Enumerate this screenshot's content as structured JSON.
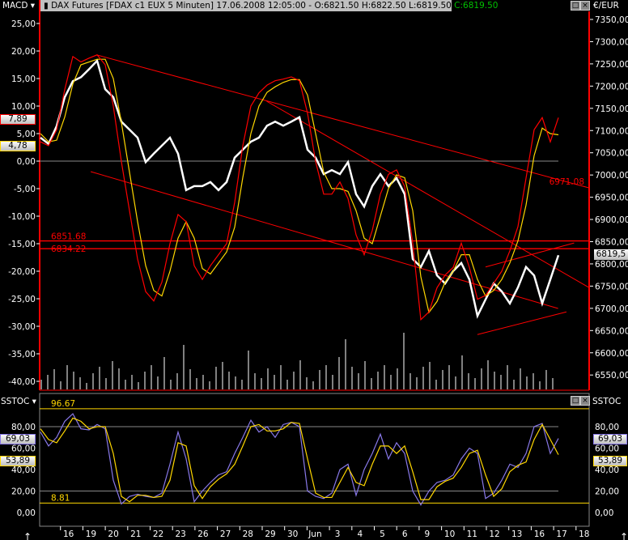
{
  "header": {
    "indicator_menu": "MACD ▾",
    "instrument": "DAX Futures [FDAX c1 EUX  5 Minuten]",
    "datetime": "17.06.2008 12:05:00 -",
    "ohl": "O:6821.50 H:6822.50 L:6819.50",
    "close": "C:6819.50",
    "currency": "€/EUR",
    "lower_indicator_left": "SSTOC ▾",
    "lower_indicator_right": "SSTOC"
  },
  "colors": {
    "price": "#ffffff",
    "macd": "#ff0000",
    "signal": "#ffd700",
    "stoch_k": "#8878e8",
    "stoch_d": "#ffd700",
    "trendline": "#ff0000",
    "background": "#000000",
    "close": "#00c000"
  },
  "icons": {
    "candle": "candlestick-icon",
    "restore": "restore-window-icon",
    "close": "close-icon",
    "arrow": "arrow-up-icon"
  },
  "chart_data": [
    {
      "type": "line",
      "title": "DAX Futures [FDAX c1 EUX  5 Minuten]",
      "x_range": [
        "15.05.2008",
        "17.06.2008 12:05"
      ],
      "x_tick_labels": [
        "16",
        "19",
        "20",
        "21",
        "22",
        "23",
        "26",
        "27",
        "28",
        "29",
        "30",
        "Jun",
        "3",
        "4",
        "5",
        "6",
        "9",
        "10",
        "11",
        "12",
        "13",
        "16",
        "17",
        "18"
      ],
      "right_axis": {
        "label": "€/EUR",
        "ticks": [
          "7350,00",
          "7300,00",
          "7250,00",
          "7200,00",
          "7150,00",
          "7100,00",
          "7050,00",
          "7000,00",
          "6950,00",
          "6900,00",
          "6850,00",
          "6800,00",
          "6750,00",
          "6700,00",
          "6650,00",
          "6600,00",
          "6550,00"
        ],
        "range": [
          6520,
          7370
        ]
      },
      "left_axis": {
        "label": "MACD",
        "ticks": [
          "25,00",
          "20,00",
          "15,00",
          "10,00",
          "5,00",
          "0,00",
          "-5,00",
          "-10,00",
          "-15,00",
          "-20,00",
          "-25,00",
          "-30,00",
          "-35,00",
          "-40,00"
        ],
        "range": [
          -42,
          28
        ]
      },
      "price_series": [
        7084,
        7070,
        7110,
        7175,
        7211,
        7220,
        7238,
        7257,
        7193,
        7175,
        7120,
        7102,
        7084,
        7029,
        7048,
        7066,
        7084,
        7048,
        6966,
        6975,
        6975,
        6984,
        6966,
        6984,
        7039,
        7057,
        7075,
        7084,
        7111,
        7120,
        7111,
        7120,
        7130,
        7057,
        7039,
        7002,
        7011,
        7002,
        7029,
        6957,
        6929,
        6975,
        7002,
        6975,
        6993,
        6957,
        6811,
        6793,
        6829,
        6774,
        6756,
        6784,
        6802,
        6765,
        6683,
        6720,
        6756,
        6738,
        6711,
        6747,
        6793,
        6774,
        6711,
        6765,
        6819.5
      ],
      "macd_series": [
        3.5,
        2.8,
        5.7,
        13,
        19,
        18,
        18.7,
        19.3,
        17.5,
        10,
        -0.1,
        -9,
        -17.8,
        -23.7,
        -25.4,
        -22,
        -15,
        -9.7,
        -11,
        -19,
        -21.5,
        -19,
        -17,
        -15,
        -7.5,
        2.8,
        10,
        12.4,
        13.8,
        14.6,
        14.9,
        15.3,
        14.6,
        8.7,
        -0.1,
        -6,
        -6,
        -3.8,
        -6.8,
        -13.4,
        -17,
        -12.6,
        -6,
        -2.4,
        -1.6,
        -4.6,
        -14.9,
        -28.8,
        -27.4,
        -23,
        -20.7,
        -19.3,
        -14.9,
        -19.3,
        -25.1,
        -24.4,
        -22.2,
        -20,
        -16.3,
        -11.9,
        -3.1,
        5.7,
        7.9,
        3.5,
        7.89
      ],
      "signal_series": [
        5,
        3.5,
        3.8,
        8,
        14,
        17.5,
        18,
        18.5,
        18.5,
        15,
        7,
        -2,
        -11,
        -19,
        -23.5,
        -24.5,
        -20,
        -14,
        -11,
        -14,
        -19.5,
        -20.5,
        -18.5,
        -16.5,
        -12,
        -3,
        5,
        10,
        12.5,
        13.5,
        14.3,
        14.8,
        14.8,
        12,
        5,
        -2,
        -5,
        -5,
        -5.5,
        -9,
        -14,
        -15,
        -10,
        -5,
        -2.5,
        -3,
        -9,
        -21,
        -27.5,
        -25.5,
        -22,
        -20,
        -17,
        -17,
        -21.5,
        -24.5,
        -23.5,
        -21.5,
        -18.5,
        -14.5,
        -8,
        1,
        6,
        5,
        4.78
      ],
      "volume": [
        12,
        18,
        25,
        10,
        30,
        22,
        15,
        8,
        20,
        28,
        14,
        35,
        26,
        12,
        18,
        9,
        22,
        30,
        16,
        40,
        12,
        20,
        55,
        25,
        14,
        18,
        10,
        28,
        34,
        22,
        16,
        12,
        48,
        20,
        14,
        26,
        18,
        30,
        12,
        22,
        36,
        15,
        10,
        24,
        30,
        18,
        40,
        62,
        28,
        20,
        35,
        14,
        22,
        30,
        18,
        26,
        70,
        20,
        15,
        28,
        34,
        12,
        24,
        30,
        16,
        42,
        20,
        14,
        26,
        36,
        22,
        18,
        30,
        12,
        26,
        16,
        20,
        10,
        24,
        14
      ],
      "current_labels": {
        "macd": "7,89",
        "signal": "4,78",
        "price": "6819,5"
      },
      "horizontal_lines": [
        {
          "price": 6851.68,
          "label": "6851.68"
        },
        {
          "price": 6834.22,
          "label": "6834.22"
        }
      ],
      "zero_line": 0,
      "trendline_label": "6971.08",
      "trendlines": [
        {
          "from": {
            "day": "19",
            "hour": 16.8,
            "price": 7270
          },
          "to": {
            "day": "18",
            "hour": 16,
            "price": 6971.08
          }
        },
        {
          "from": {
            "day": "19",
            "hour": 12.9,
            "price": 7007.6
          },
          "to": {
            "day": "17",
            "hour": 10.8,
            "price": 6699.7
          }
        },
        {
          "from": {
            "day": "29",
            "hour": 10.8,
            "price": 7166
          },
          "to": {
            "day": "18",
            "hour": 16,
            "price": 6747
          }
        },
        {
          "from": {
            "day": "11",
            "hour": 16.4,
            "price": 6641
          },
          "to": {
            "day": "17",
            "hour": 16,
            "price": 6692
          }
        },
        {
          "from": {
            "day": "11",
            "hour": 21.5,
            "price": 6793
          },
          "to": {
            "day": "17",
            "hour": 20.8,
            "price": 6847
          }
        }
      ]
    },
    {
      "type": "line",
      "title": "SSTOC",
      "axis": {
        "ticks": [
          "80,00",
          "60,00",
          "40,00",
          "20,00",
          "0,00"
        ],
        "range": [
          -10,
          105
        ]
      },
      "levels": [
        {
          "value": 96.67,
          "label": "96.67"
        },
        {
          "value": 80
        },
        {
          "value": 20
        },
        {
          "value": 8.81,
          "label": "8.81"
        }
      ],
      "k_series": [
        75,
        62,
        70,
        85,
        92,
        78,
        77,
        82,
        78,
        30,
        8,
        15,
        17,
        15,
        14,
        18,
        45,
        75,
        50,
        10,
        20,
        28,
        35,
        38,
        55,
        70,
        86,
        75,
        80,
        70,
        82,
        84,
        80,
        20,
        15,
        13,
        18,
        40,
        45,
        16,
        40,
        55,
        73,
        50,
        65,
        55,
        20,
        7,
        20,
        28,
        30,
        35,
        50,
        60,
        55,
        13,
        18,
        30,
        45,
        42,
        55,
        80,
        83,
        55,
        69.03
      ],
      "d_series": [
        78,
        68,
        65,
        76,
        88,
        85,
        78,
        80,
        80,
        55,
        15,
        10,
        16,
        16,
        14,
        15,
        30,
        65,
        62,
        25,
        13,
        24,
        31,
        36,
        45,
        62,
        80,
        82,
        76,
        76,
        78,
        84,
        83,
        50,
        18,
        14,
        14,
        28,
        42,
        28,
        25,
        45,
        62,
        62,
        55,
        62,
        38,
        12,
        12,
        24,
        29,
        32,
        42,
        55,
        58,
        35,
        15,
        22,
        38,
        44,
        47,
        68,
        82,
        68,
        53.89
      ],
      "current_labels": {
        "k": "69,03",
        "d": "53,89"
      }
    }
  ]
}
